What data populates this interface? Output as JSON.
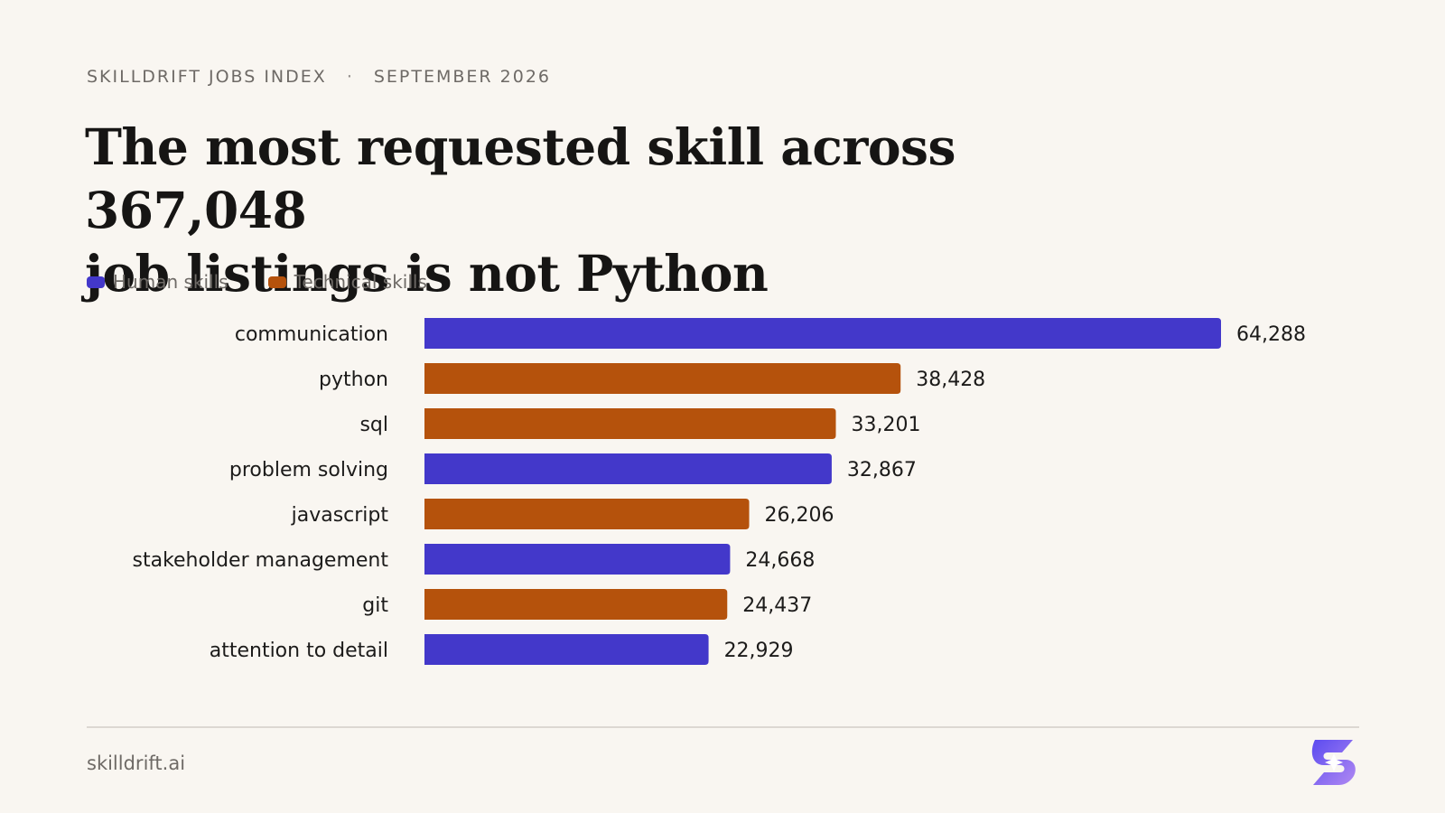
{
  "eyebrow": {
    "brand": "SKILLDRIFT JOBS INDEX",
    "separator": "·",
    "date": "SEPTEMBER 2026"
  },
  "headline": {
    "line1": "The most requested skill across 367,048",
    "line2": "job listings is not Python"
  },
  "legend": [
    {
      "label": "Human skills",
      "color": "#4338ca"
    },
    {
      "label": "Technical skills",
      "color": "#b5520c"
    }
  ],
  "footer": {
    "site": "skilldrift.ai",
    "logo": "skilldrift-logo-icon"
  },
  "chart_data": {
    "type": "bar",
    "orientation": "horizontal",
    "categories": [
      "communication",
      "python",
      "sql",
      "problem solving",
      "javascript",
      "stakeholder management",
      "git",
      "attention to detail"
    ],
    "values": [
      64288,
      38428,
      33201,
      32867,
      26206,
      24668,
      24437,
      22929
    ],
    "value_labels": [
      "64,288",
      "38,428",
      "33,201",
      "32,867",
      "26,206",
      "24,668",
      "24,437",
      "22,929"
    ],
    "groups": [
      "Human skills",
      "Technical skills",
      "Technical skills",
      "Human skills",
      "Technical skills",
      "Human skills",
      "Technical skills",
      "Human skills"
    ],
    "group_colors": {
      "Human skills": "#4338ca",
      "Technical skills": "#b5520c"
    },
    "legend_placement": "top-left",
    "grid": false
  }
}
